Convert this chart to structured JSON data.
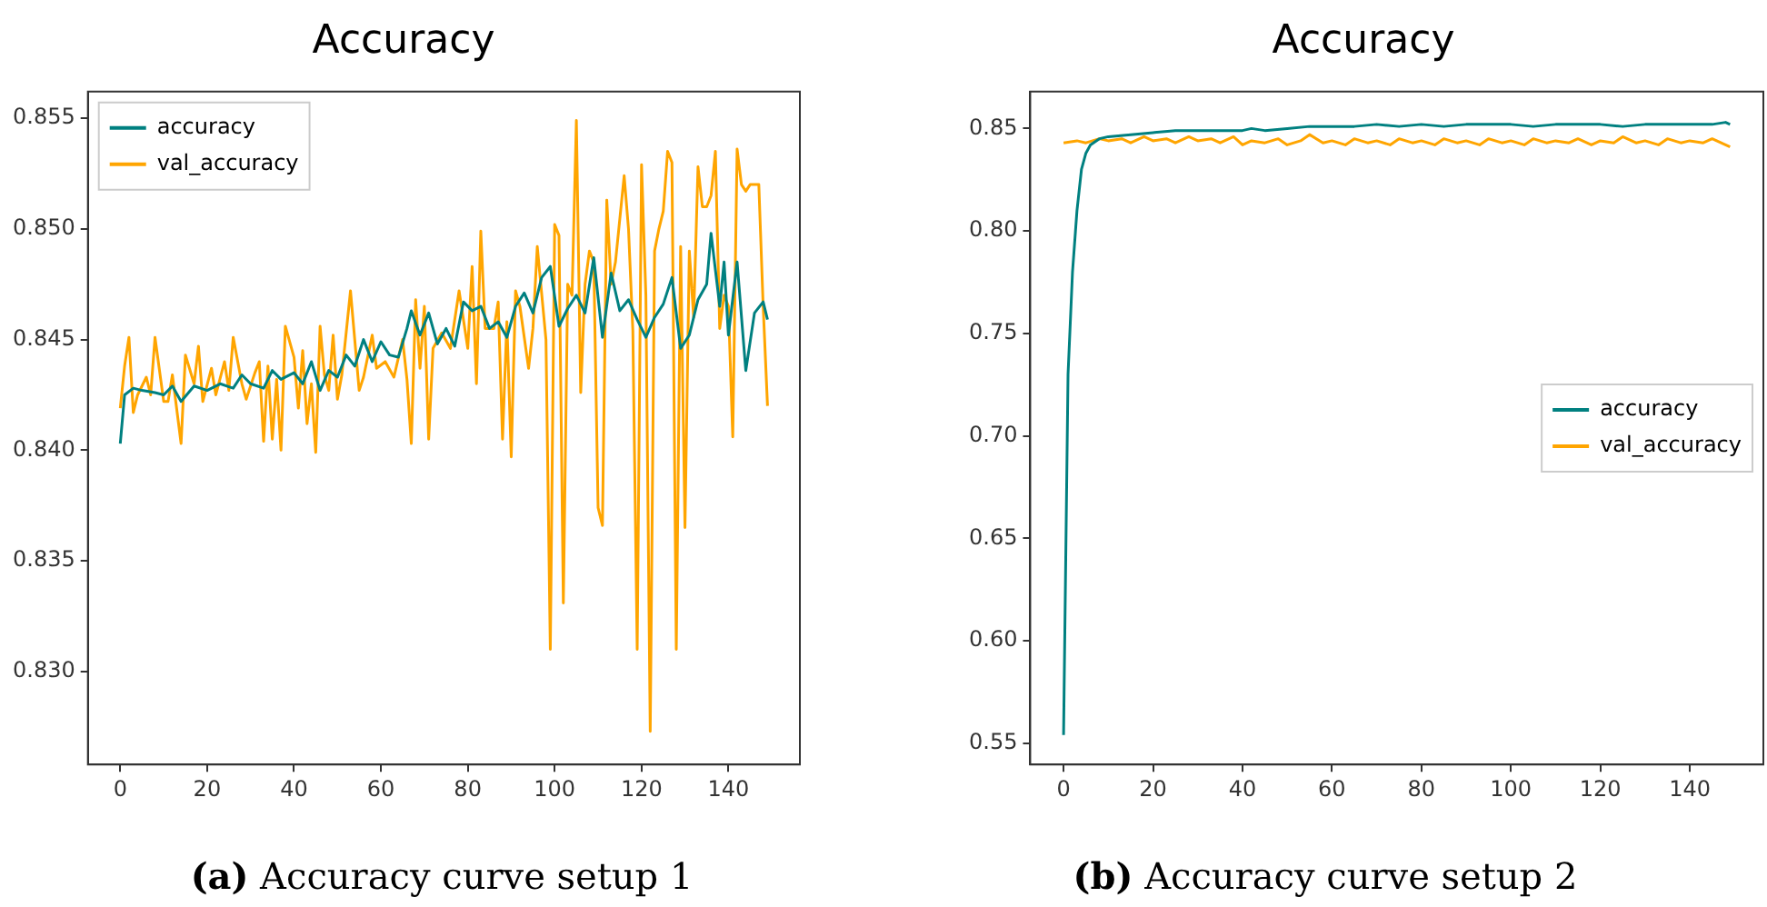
{
  "chart_data": [
    {
      "type": "line",
      "title": "Accuracy",
      "annotations": [
        "(a) Accuracy curve setup 1"
      ],
      "xlim": [
        -7.45,
        156.45
      ],
      "xticks": [
        0,
        20,
        40,
        60,
        80,
        100,
        120,
        140
      ],
      "ylim": [
        0.8258,
        0.8562
      ],
      "yticks": [
        {
          "value": 0.83,
          "label": "0.830"
        },
        {
          "value": 0.835,
          "label": "0.835"
        },
        {
          "value": 0.84,
          "label": "0.840"
        },
        {
          "value": 0.845,
          "label": "0.845"
        },
        {
          "value": 0.85,
          "label": "0.850"
        },
        {
          "value": 0.855,
          "label": "0.855"
        }
      ],
      "grid": false,
      "legend": "top left",
      "marker": "none",
      "line_style": "solid",
      "series": [
        {
          "name": "accuracy",
          "color": "#008080",
          "x": [
            0,
            1,
            3,
            5,
            8,
            10,
            12,
            14,
            17,
            20,
            23,
            26,
            28,
            30,
            33,
            35,
            37,
            40,
            42,
            44,
            46,
            48,
            50,
            52,
            54,
            56,
            58,
            60,
            62,
            64,
            66,
            67,
            69,
            71,
            73,
            75,
            77,
            79,
            81,
            83,
            85,
            87,
            89,
            91,
            93,
            95,
            97,
            99,
            101,
            103,
            105,
            107,
            109,
            111,
            113,
            115,
            117,
            119,
            121,
            123,
            125,
            127,
            129,
            131,
            133,
            135,
            136,
            138,
            139,
            140,
            142,
            144,
            146,
            148,
            149
          ],
          "values": [
            0.8403,
            0.8425,
            0.8428,
            0.8427,
            0.8426,
            0.8425,
            0.8429,
            0.8422,
            0.8429,
            0.8427,
            0.843,
            0.8428,
            0.8434,
            0.843,
            0.8428,
            0.8436,
            0.8432,
            0.8435,
            0.843,
            0.844,
            0.8427,
            0.8436,
            0.8433,
            0.8443,
            0.8438,
            0.845,
            0.844,
            0.8449,
            0.8443,
            0.8442,
            0.8455,
            0.8463,
            0.8452,
            0.8462,
            0.8448,
            0.8455,
            0.8447,
            0.8467,
            0.8463,
            0.8465,
            0.8455,
            0.8458,
            0.8451,
            0.8465,
            0.8471,
            0.8462,
            0.8478,
            0.8483,
            0.8456,
            0.8464,
            0.847,
            0.8462,
            0.8487,
            0.8451,
            0.848,
            0.8463,
            0.8468,
            0.8459,
            0.8451,
            0.846,
            0.8466,
            0.8478,
            0.8446,
            0.8452,
            0.8468,
            0.8475,
            0.8498,
            0.8465,
            0.8485,
            0.8452,
            0.8485,
            0.8436,
            0.8462,
            0.8467,
            0.8459
          ]
        },
        {
          "name": "val_accuracy",
          "color": "#ffa500",
          "x": [
            0,
            1,
            2,
            3,
            4,
            6,
            7,
            8,
            10,
            11,
            12,
            14,
            15,
            17,
            18,
            19,
            21,
            22,
            24,
            25,
            26,
            28,
            29,
            31,
            32,
            33,
            34,
            35,
            36,
            37,
            38,
            40,
            41,
            42,
            43,
            44,
            45,
            46,
            47,
            48,
            49,
            50,
            51,
            53,
            55,
            56,
            58,
            59,
            61,
            63,
            65,
            66,
            67,
            68,
            69,
            70,
            71,
            72,
            74,
            76,
            78,
            80,
            81,
            82,
            83,
            84,
            86,
            87,
            88,
            89,
            90,
            91,
            92,
            94,
            95,
            96,
            98,
            99,
            100,
            101,
            102,
            103,
            104,
            105,
            106,
            107,
            108,
            109,
            110,
            111,
            112,
            113,
            114,
            116,
            117,
            118,
            119,
            120,
            121,
            122,
            123,
            124,
            125,
            126,
            127,
            128,
            129,
            130,
            131,
            132,
            133,
            134,
            135,
            136,
            137,
            138,
            139,
            140,
            141,
            142,
            143,
            144,
            145,
            146,
            147,
            148,
            149
          ],
          "values": [
            0.8419,
            0.8438,
            0.8451,
            0.8417,
            0.8425,
            0.8433,
            0.8425,
            0.8451,
            0.8422,
            0.8422,
            0.8434,
            0.8403,
            0.8443,
            0.843,
            0.8447,
            0.8422,
            0.8437,
            0.8425,
            0.844,
            0.8427,
            0.8451,
            0.843,
            0.8423,
            0.8435,
            0.844,
            0.8404,
            0.8438,
            0.8405,
            0.8432,
            0.84,
            0.8456,
            0.8442,
            0.8419,
            0.8445,
            0.8412,
            0.843,
            0.8399,
            0.8456,
            0.8434,
            0.8427,
            0.8452,
            0.8423,
            0.8434,
            0.8472,
            0.8427,
            0.8433,
            0.8452,
            0.8437,
            0.844,
            0.8433,
            0.845,
            0.8432,
            0.8403,
            0.8468,
            0.8437,
            0.8465,
            0.8405,
            0.8446,
            0.8453,
            0.8446,
            0.8472,
            0.8446,
            0.8483,
            0.843,
            0.8499,
            0.8455,
            0.8455,
            0.8467,
            0.8405,
            0.8458,
            0.8397,
            0.8472,
            0.8465,
            0.8437,
            0.8455,
            0.8492,
            0.845,
            0.831,
            0.8502,
            0.8497,
            0.8331,
            0.8475,
            0.847,
            0.8549,
            0.8426,
            0.8475,
            0.849,
            0.8485,
            0.8374,
            0.8366,
            0.8513,
            0.8475,
            0.8485,
            0.8524,
            0.85,
            0.8454,
            0.831,
            0.8529,
            0.847,
            0.8273,
            0.849,
            0.85,
            0.8508,
            0.8535,
            0.853,
            0.831,
            0.8492,
            0.8365,
            0.849,
            0.846,
            0.8528,
            0.851,
            0.851,
            0.8515,
            0.8535,
            0.8455,
            0.847,
            0.8465,
            0.8406,
            0.8536,
            0.852,
            0.8517,
            0.852,
            0.852,
            0.852,
            0.8465,
            0.842
          ]
        }
      ]
    },
    {
      "type": "line",
      "title": "Accuracy",
      "annotations": [
        "(b) Accuracy curve setup 2"
      ],
      "xlim": [
        -7.45,
        156.45
      ],
      "xticks": [
        0,
        20,
        40,
        60,
        80,
        100,
        120,
        140
      ],
      "ylim": [
        0.5396,
        0.868
      ],
      "yticks": [
        {
          "value": 0.55,
          "label": "0.55"
        },
        {
          "value": 0.6,
          "label": "0.60"
        },
        {
          "value": 0.65,
          "label": "0.65"
        },
        {
          "value": 0.7,
          "label": "0.70"
        },
        {
          "value": 0.75,
          "label": "0.75"
        },
        {
          "value": 0.8,
          "label": "0.80"
        },
        {
          "value": 0.85,
          "label": "0.85"
        }
      ],
      "grid": false,
      "legend": "center right",
      "marker": "none",
      "line_style": "solid",
      "series": [
        {
          "name": "accuracy",
          "color": "#008080",
          "x": [
            0,
            1,
            2,
            3,
            4,
            5,
            6,
            8,
            10,
            15,
            20,
            25,
            30,
            35,
            40,
            42,
            45,
            50,
            55,
            60,
            65,
            70,
            75,
            80,
            85,
            90,
            95,
            100,
            105,
            110,
            115,
            120,
            125,
            130,
            135,
            140,
            145,
            148,
            149
          ],
          "values": [
            0.554,
            0.73,
            0.78,
            0.81,
            0.83,
            0.838,
            0.842,
            0.845,
            0.846,
            0.847,
            0.848,
            0.849,
            0.849,
            0.849,
            0.849,
            0.85,
            0.849,
            0.85,
            0.851,
            0.851,
            0.851,
            0.852,
            0.851,
            0.852,
            0.851,
            0.852,
            0.852,
            0.852,
            0.851,
            0.852,
            0.852,
            0.852,
            0.851,
            0.852,
            0.852,
            0.852,
            0.852,
            0.853,
            0.852
          ]
        },
        {
          "name": "val_accuracy",
          "color": "#ffa500",
          "x": [
            0,
            3,
            5,
            8,
            10,
            13,
            15,
            18,
            20,
            23,
            25,
            28,
            30,
            33,
            35,
            38,
            40,
            42,
            45,
            48,
            50,
            53,
            55,
            58,
            60,
            63,
            65,
            68,
            70,
            73,
            75,
            78,
            80,
            83,
            85,
            88,
            90,
            93,
            95,
            98,
            100,
            103,
            105,
            108,
            110,
            113,
            115,
            118,
            120,
            123,
            125,
            128,
            130,
            133,
            135,
            138,
            140,
            143,
            145,
            148,
            149
          ],
          "values": [
            0.843,
            0.844,
            0.843,
            0.845,
            0.844,
            0.845,
            0.843,
            0.846,
            0.844,
            0.845,
            0.843,
            0.846,
            0.844,
            0.845,
            0.843,
            0.846,
            0.842,
            0.844,
            0.843,
            0.845,
            0.842,
            0.844,
            0.847,
            0.843,
            0.844,
            0.842,
            0.845,
            0.843,
            0.844,
            0.842,
            0.845,
            0.843,
            0.844,
            0.842,
            0.845,
            0.843,
            0.844,
            0.842,
            0.845,
            0.843,
            0.844,
            0.842,
            0.845,
            0.843,
            0.844,
            0.843,
            0.845,
            0.842,
            0.844,
            0.843,
            0.846,
            0.843,
            0.844,
            0.842,
            0.845,
            0.843,
            0.844,
            0.843,
            0.845,
            0.842,
            0.841
          ]
        }
      ]
    }
  ]
}
